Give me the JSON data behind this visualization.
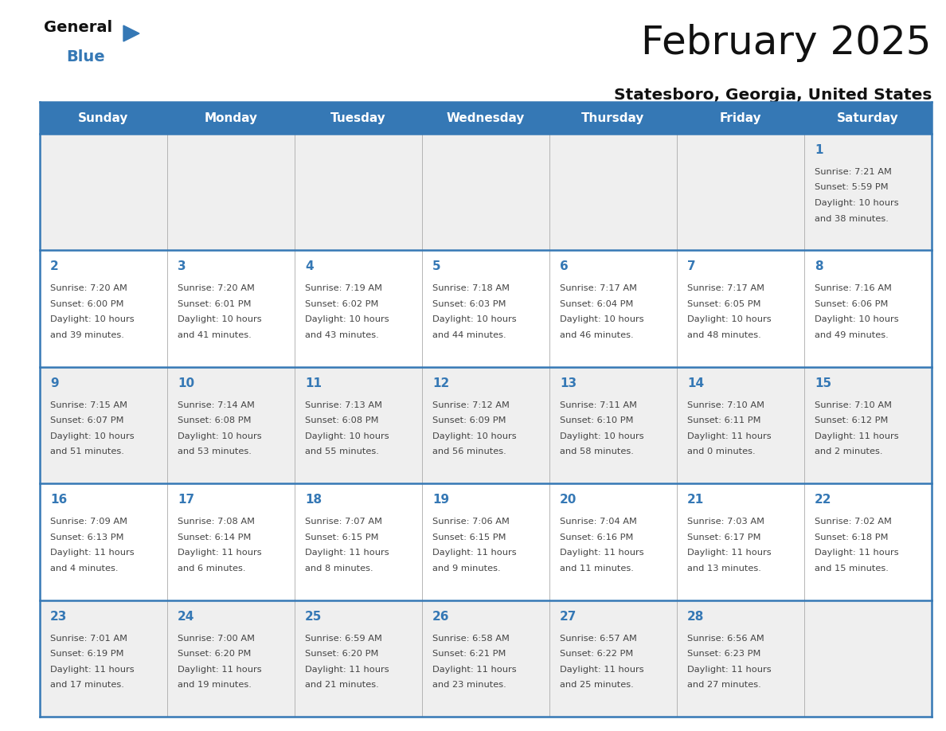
{
  "title": "February 2025",
  "subtitle": "Statesboro, Georgia, United States",
  "header_color": "#3578b5",
  "header_text_color": "#ffffff",
  "days_of_week": [
    "Sunday",
    "Monday",
    "Tuesday",
    "Wednesday",
    "Thursday",
    "Friday",
    "Saturday"
  ],
  "background_color": "#ffffff",
  "cell_bg_row0": "#efefef",
  "cell_bg_row1": "#ffffff",
  "cell_bg_row2": "#efefef",
  "cell_bg_row3": "#ffffff",
  "cell_bg_row4": "#efefef",
  "day_num_color": "#3578b5",
  "info_text_color": "#444444",
  "border_color": "#3578b5",
  "logo_general_color": "#111111",
  "logo_blue_color": "#3578b5",
  "logo_triangle_color": "#3578b5",
  "calendar_data": [
    [
      null,
      null,
      null,
      null,
      null,
      null,
      {
        "day": 1,
        "sunrise": "7:21 AM",
        "sunset": "5:59 PM",
        "daylight": "10 hours and 38 minutes."
      }
    ],
    [
      {
        "day": 2,
        "sunrise": "7:20 AM",
        "sunset": "6:00 PM",
        "daylight": "10 hours and 39 minutes."
      },
      {
        "day": 3,
        "sunrise": "7:20 AM",
        "sunset": "6:01 PM",
        "daylight": "10 hours and 41 minutes."
      },
      {
        "day": 4,
        "sunrise": "7:19 AM",
        "sunset": "6:02 PM",
        "daylight": "10 hours and 43 minutes."
      },
      {
        "day": 5,
        "sunrise": "7:18 AM",
        "sunset": "6:03 PM",
        "daylight": "10 hours and 44 minutes."
      },
      {
        "day": 6,
        "sunrise": "7:17 AM",
        "sunset": "6:04 PM",
        "daylight": "10 hours and 46 minutes."
      },
      {
        "day": 7,
        "sunrise": "7:17 AM",
        "sunset": "6:05 PM",
        "daylight": "10 hours and 48 minutes."
      },
      {
        "day": 8,
        "sunrise": "7:16 AM",
        "sunset": "6:06 PM",
        "daylight": "10 hours and 49 minutes."
      }
    ],
    [
      {
        "day": 9,
        "sunrise": "7:15 AM",
        "sunset": "6:07 PM",
        "daylight": "10 hours and 51 minutes."
      },
      {
        "day": 10,
        "sunrise": "7:14 AM",
        "sunset": "6:08 PM",
        "daylight": "10 hours and 53 minutes."
      },
      {
        "day": 11,
        "sunrise": "7:13 AM",
        "sunset": "6:08 PM",
        "daylight": "10 hours and 55 minutes."
      },
      {
        "day": 12,
        "sunrise": "7:12 AM",
        "sunset": "6:09 PM",
        "daylight": "10 hours and 56 minutes."
      },
      {
        "day": 13,
        "sunrise": "7:11 AM",
        "sunset": "6:10 PM",
        "daylight": "10 hours and 58 minutes."
      },
      {
        "day": 14,
        "sunrise": "7:10 AM",
        "sunset": "6:11 PM",
        "daylight": "11 hours and 0 minutes."
      },
      {
        "day": 15,
        "sunrise": "7:10 AM",
        "sunset": "6:12 PM",
        "daylight": "11 hours and 2 minutes."
      }
    ],
    [
      {
        "day": 16,
        "sunrise": "7:09 AM",
        "sunset": "6:13 PM",
        "daylight": "11 hours and 4 minutes."
      },
      {
        "day": 17,
        "sunrise": "7:08 AM",
        "sunset": "6:14 PM",
        "daylight": "11 hours and 6 minutes."
      },
      {
        "day": 18,
        "sunrise": "7:07 AM",
        "sunset": "6:15 PM",
        "daylight": "11 hours and 8 minutes."
      },
      {
        "day": 19,
        "sunrise": "7:06 AM",
        "sunset": "6:15 PM",
        "daylight": "11 hours and 9 minutes."
      },
      {
        "day": 20,
        "sunrise": "7:04 AM",
        "sunset": "6:16 PM",
        "daylight": "11 hours and 11 minutes."
      },
      {
        "day": 21,
        "sunrise": "7:03 AM",
        "sunset": "6:17 PM",
        "daylight": "11 hours and 13 minutes."
      },
      {
        "day": 22,
        "sunrise": "7:02 AM",
        "sunset": "6:18 PM",
        "daylight": "11 hours and 15 minutes."
      }
    ],
    [
      {
        "day": 23,
        "sunrise": "7:01 AM",
        "sunset": "6:19 PM",
        "daylight": "11 hours and 17 minutes."
      },
      {
        "day": 24,
        "sunrise": "7:00 AM",
        "sunset": "6:20 PM",
        "daylight": "11 hours and 19 minutes."
      },
      {
        "day": 25,
        "sunrise": "6:59 AM",
        "sunset": "6:20 PM",
        "daylight": "11 hours and 21 minutes."
      },
      {
        "day": 26,
        "sunrise": "6:58 AM",
        "sunset": "6:21 PM",
        "daylight": "11 hours and 23 minutes."
      },
      {
        "day": 27,
        "sunrise": "6:57 AM",
        "sunset": "6:22 PM",
        "daylight": "11 hours and 25 minutes."
      },
      {
        "day": 28,
        "sunrise": "6:56 AM",
        "sunset": "6:23 PM",
        "daylight": "11 hours and 27 minutes."
      },
      null
    ]
  ]
}
